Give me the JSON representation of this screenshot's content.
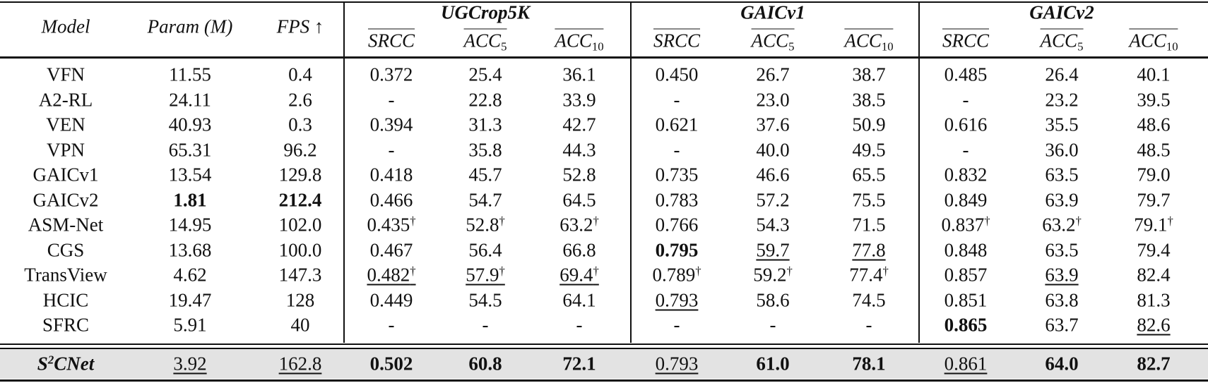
{
  "header": {
    "columns": [
      "Model",
      "Param (M)",
      "FPS ↑"
    ],
    "groups": [
      {
        "name": "UGCrop5K",
        "metrics": [
          "SRCC",
          {
            "text": "ACC",
            "sub": "5"
          },
          {
            "text": "ACC",
            "sub": "10"
          }
        ]
      },
      {
        "name": "GAICv1",
        "metrics": [
          "SRCC",
          {
            "text": "ACC",
            "sub": "5"
          },
          {
            "text": "ACC",
            "sub": "10"
          }
        ]
      },
      {
        "name": "GAICv2",
        "metrics": [
          "SRCC",
          {
            "text": "ACC",
            "sub": "5"
          },
          {
            "text": "ACC",
            "sub": "10"
          }
        ]
      }
    ]
  },
  "table": {
    "rows": [
      [
        "VFN",
        "11.55",
        "0.4",
        "0.372",
        "25.4",
        "36.1",
        "0.450",
        "26.7",
        "38.7",
        "0.485",
        "26.4",
        "40.1"
      ],
      [
        "A2-RL",
        "24.11",
        "2.6",
        "-",
        "22.8",
        "33.9",
        "-",
        "23.0",
        "38.5",
        "-",
        "23.2",
        "39.5"
      ],
      [
        "VEN",
        "40.93",
        "0.3",
        "0.394",
        "31.3",
        "42.7",
        "0.621",
        "37.6",
        "50.9",
        "0.616",
        "35.5",
        "48.6"
      ],
      [
        "VPN",
        "65.31",
        "96.2",
        "-",
        "35.8",
        "44.3",
        "-",
        "40.0",
        "49.5",
        "-",
        "36.0",
        "48.5"
      ],
      [
        "GAICv1",
        "13.54",
        "129.8",
        "0.418",
        "45.7",
        "52.8",
        "0.735",
        "46.6",
        "65.5",
        "0.832",
        "63.5",
        "79.0"
      ],
      [
        "GAICv2",
        {
          "text": "1.81",
          "bold": true
        },
        {
          "text": "212.4",
          "bold": true
        },
        "0.466",
        "54.7",
        "64.5",
        "0.783",
        "57.2",
        "75.5",
        "0.849",
        "63.9",
        "79.7"
      ],
      [
        "ASM-Net",
        "14.95",
        "102.0",
        {
          "text": "0.435",
          "sup": "†"
        },
        {
          "text": "52.8",
          "sup": "†"
        },
        {
          "text": "63.2",
          "sup": "†"
        },
        "0.766",
        "54.3",
        "71.5",
        {
          "text": "0.837",
          "sup": "†"
        },
        {
          "text": "63.2",
          "sup": "†"
        },
        {
          "text": "79.1",
          "sup": "†"
        }
      ],
      [
        "CGS",
        "13.68",
        "100.0",
        "0.467",
        "56.4",
        "66.8",
        {
          "text": "0.795",
          "bold": true
        },
        {
          "text": "59.7",
          "underline": true
        },
        {
          "text": "77.8",
          "underline": true
        },
        "0.848",
        "63.5",
        "79.4"
      ],
      [
        "TransView",
        "4.62",
        "147.3",
        {
          "text": "0.482",
          "sup": "†",
          "underline": true
        },
        {
          "text": "57.9",
          "sup": "†",
          "underline": true
        },
        {
          "text": "69.4",
          "sup": "†",
          "underline": true
        },
        {
          "text": "0.789",
          "sup": "†"
        },
        {
          "text": "59.2",
          "sup": "†"
        },
        {
          "text": "77.4",
          "sup": "†"
        },
        "0.857",
        {
          "text": "63.9",
          "underline": true
        },
        "82.4"
      ],
      [
        "HCIC",
        "19.47",
        "128",
        "0.449",
        "54.5",
        "64.1",
        {
          "text": "0.793",
          "underline": true
        },
        "58.6",
        "74.5",
        "0.851",
        "63.8",
        "81.3"
      ],
      [
        "SFRC",
        "5.91",
        "40",
        "-",
        "-",
        "-",
        "-",
        "-",
        "-",
        {
          "text": "0.865",
          "bold": true
        },
        "63.7",
        {
          "text": "82.6",
          "underline": true
        }
      ],
      [
        {
          "text": "S",
          "sup": "2",
          "after": "CNet",
          "bold": true,
          "italic": true
        },
        {
          "text": "3.92",
          "underline": true
        },
        {
          "text": "162.8",
          "underline": true
        },
        {
          "text": "0.502",
          "bold": true
        },
        {
          "text": "60.8",
          "bold": true
        },
        {
          "text": "72.1",
          "bold": true
        },
        {
          "text": "0.793",
          "underline": true
        },
        {
          "text": "61.0",
          "bold": true
        },
        {
          "text": "78.1",
          "bold": true
        },
        {
          "text": "0.861",
          "underline": true
        },
        {
          "text": "64.0",
          "bold": true
        },
        {
          "text": "82.7",
          "bold": true
        }
      ]
    ]
  }
}
